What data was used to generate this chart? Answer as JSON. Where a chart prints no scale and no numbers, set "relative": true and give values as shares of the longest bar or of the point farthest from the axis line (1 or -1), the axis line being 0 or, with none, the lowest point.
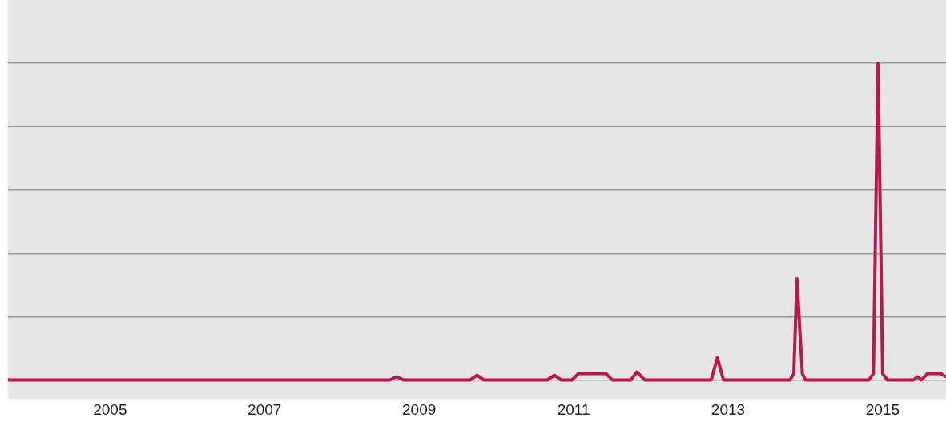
{
  "chart_data": {
    "type": "line",
    "relative": true,
    "grid": "y",
    "line_style": "solid",
    "marker": "none",
    "xlim": [
      2003.68,
      2015.82
    ],
    "xticks": [
      2005,
      2007,
      2009,
      2011,
      2013,
      2015
    ],
    "x": [
      2003.68,
      2008.62,
      2008.71,
      2008.8,
      2009.66,
      2009.75,
      2009.84,
      2010.66,
      2010.75,
      2010.84,
      2010.98,
      2011.06,
      2011.42,
      2011.5,
      2011.74,
      2011.82,
      2011.92,
      2012.78,
      2012.86,
      2012.94,
      2013.8,
      2013.85,
      2013.89,
      2013.96,
      2014.0,
      2014.82,
      2014.88,
      2014.94,
      2015.0,
      2015.06,
      2015.4,
      2015.45,
      2015.5,
      2015.58,
      2015.75,
      2015.82
    ],
    "series": [
      {
        "color": "#b8174f",
        "values": [
          0,
          0,
          0.01,
          0,
          0,
          0.015,
          0,
          0,
          0.015,
          0,
          0,
          0.02,
          0.02,
          0,
          0,
          0.025,
          0,
          0,
          0.07,
          0,
          0,
          0.02,
          0.32,
          0.02,
          0,
          0,
          0.02,
          1,
          0.02,
          0,
          0,
          0.01,
          0,
          0.02,
          0.02,
          0.01
        ]
      }
    ]
  }
}
